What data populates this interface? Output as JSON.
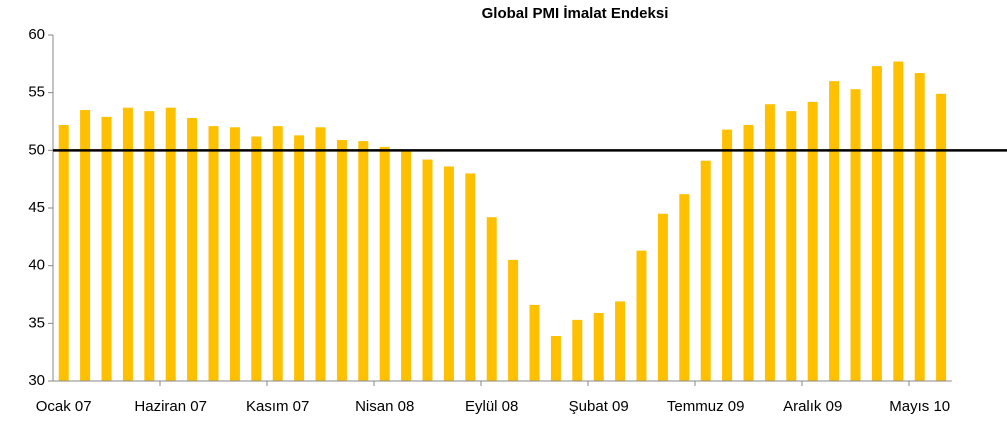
{
  "chart_data": {
    "type": "bar",
    "title": "Global PMI İmalat Endeksi",
    "categories": [
      "Ocak 07",
      null,
      null,
      null,
      null,
      "Haziran 07",
      null,
      null,
      null,
      null,
      "Kasım 07",
      null,
      null,
      null,
      null,
      "Nisan 08",
      null,
      null,
      null,
      null,
      "Eylül 08",
      null,
      null,
      null,
      null,
      "Şubat 09",
      null,
      null,
      null,
      null,
      "Temmuz 09",
      null,
      null,
      null,
      null,
      "Aralık 09",
      null,
      null,
      null,
      null,
      "Mayıs 10",
      null
    ],
    "values": [
      52.2,
      53.5,
      52.9,
      53.7,
      53.4,
      53.7,
      52.8,
      52.1,
      52.0,
      51.2,
      52.1,
      51.3,
      52.0,
      50.9,
      50.8,
      50.3,
      50.0,
      49.2,
      48.6,
      48.0,
      44.2,
      40.5,
      36.6,
      33.9,
      35.3,
      35.9,
      36.9,
      41.3,
      44.5,
      46.2,
      49.1,
      51.8,
      52.2,
      54.0,
      53.4,
      54.2,
      56.0,
      55.3,
      57.3,
      57.7,
      56.7,
      54.9
    ],
    "color": "#ffc000",
    "ylim": [
      30,
      60
    ],
    "yticks": [
      30,
      35,
      40,
      45,
      50,
      55,
      60
    ],
    "reference_line": 50,
    "grid": false
  }
}
